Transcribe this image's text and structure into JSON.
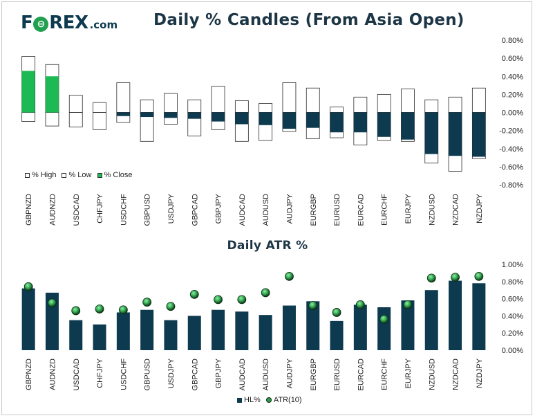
{
  "header": {
    "logo_text_1": "F",
    "logo_o": "⊖",
    "logo_text_2": "REX",
    "logo_suffix": ".com",
    "title": "Daily % Candles (From Asia Open)"
  },
  "colors": {
    "navy": "#0d3a4f",
    "green": "#1db954",
    "box_border": "#2a2a2a",
    "dot_green": "#2e9e4a"
  },
  "chart_data": [
    {
      "type": "bar",
      "title": "Daily % Candles (From Asia Open)",
      "categories": [
        "GBPNZD",
        "AUDNZD",
        "USDCAD",
        "CHFJPY",
        "USDCHF",
        "GBPUSD",
        "USDJPY",
        "GBPCAD",
        "GBPJPY",
        "AUDCAD",
        "AUDUSD",
        "AUDJPY",
        "EURGBP",
        "EURUSD",
        "EURCAD",
        "EURCHF",
        "EURJPY",
        "NZDUSD",
        "NZDCAD",
        "NZDJPY"
      ],
      "series": [
        {
          "name": "% High",
          "values": [
            0.62,
            0.53,
            0.19,
            0.11,
            0.33,
            0.14,
            0.21,
            0.14,
            0.29,
            0.13,
            0.1,
            0.33,
            0.27,
            0.06,
            0.17,
            0.2,
            0.26,
            0.14,
            0.17,
            0.27
          ]
        },
        {
          "name": "% Low",
          "values": [
            -0.1,
            -0.15,
            -0.16,
            -0.19,
            -0.11,
            -0.32,
            -0.13,
            -0.26,
            -0.19,
            -0.32,
            -0.31,
            -0.21,
            -0.29,
            -0.28,
            -0.36,
            -0.31,
            -0.32,
            -0.56,
            -0.65,
            -0.51
          ]
        },
        {
          "name": "% Close",
          "values": [
            0.46,
            0.4,
            0.0,
            0.0,
            -0.04,
            -0.05,
            -0.06,
            -0.07,
            -0.1,
            -0.13,
            -0.14,
            -0.18,
            -0.17,
            -0.22,
            -0.22,
            -0.27,
            -0.3,
            -0.46,
            -0.48,
            -0.49
          ]
        }
      ],
      "ylim": [
        -0.8,
        0.8
      ],
      "yticks": [
        "0.80%",
        "0.60%",
        "0.40%",
        "0.20%",
        "0.00%",
        "-0.20%",
        "-0.40%",
        "-0.60%",
        "-0.80%"
      ],
      "legend": "bottom-left",
      "grid": false
    },
    {
      "type": "bar",
      "title": "Daily ATR %",
      "categories": [
        "GBPNZD",
        "AUDNZD",
        "USDCAD",
        "CHFJPY",
        "USDCHF",
        "GBPUSD",
        "USDJPY",
        "GBPCAD",
        "GBPJPY",
        "AUDCAD",
        "AUDUSD",
        "AUDJPY",
        "EURGBP",
        "EURUSD",
        "EURCAD",
        "EURCHF",
        "EURJPY",
        "NZDUSD",
        "NZDCAD",
        "NZDJPY"
      ],
      "series": [
        {
          "name": "HL%",
          "values": [
            0.72,
            0.67,
            0.35,
            0.3,
            0.44,
            0.47,
            0.35,
            0.4,
            0.47,
            0.45,
            0.41,
            0.52,
            0.57,
            0.34,
            0.53,
            0.5,
            0.58,
            0.7,
            0.81,
            0.78
          ]
        },
        {
          "name": "ATR(10)",
          "values": [
            0.74,
            0.55,
            0.46,
            0.48,
            0.47,
            0.56,
            0.51,
            0.65,
            0.59,
            0.59,
            0.67,
            0.86,
            0.52,
            0.44,
            0.53,
            0.36,
            0.53,
            0.84,
            0.85,
            0.86
          ]
        }
      ],
      "ylim": [
        0,
        1.0
      ],
      "yticks": [
        "1.00%",
        "0.80%",
        "0.60%",
        "0.40%",
        "0.20%",
        "0.00%"
      ],
      "legend": "bottom-center",
      "grid": false
    }
  ],
  "legend1": {
    "high": "% High",
    "low": "% Low",
    "close": "% Close"
  },
  "legend2": {
    "hl": "HL%",
    "atr": "ATR(10)"
  }
}
